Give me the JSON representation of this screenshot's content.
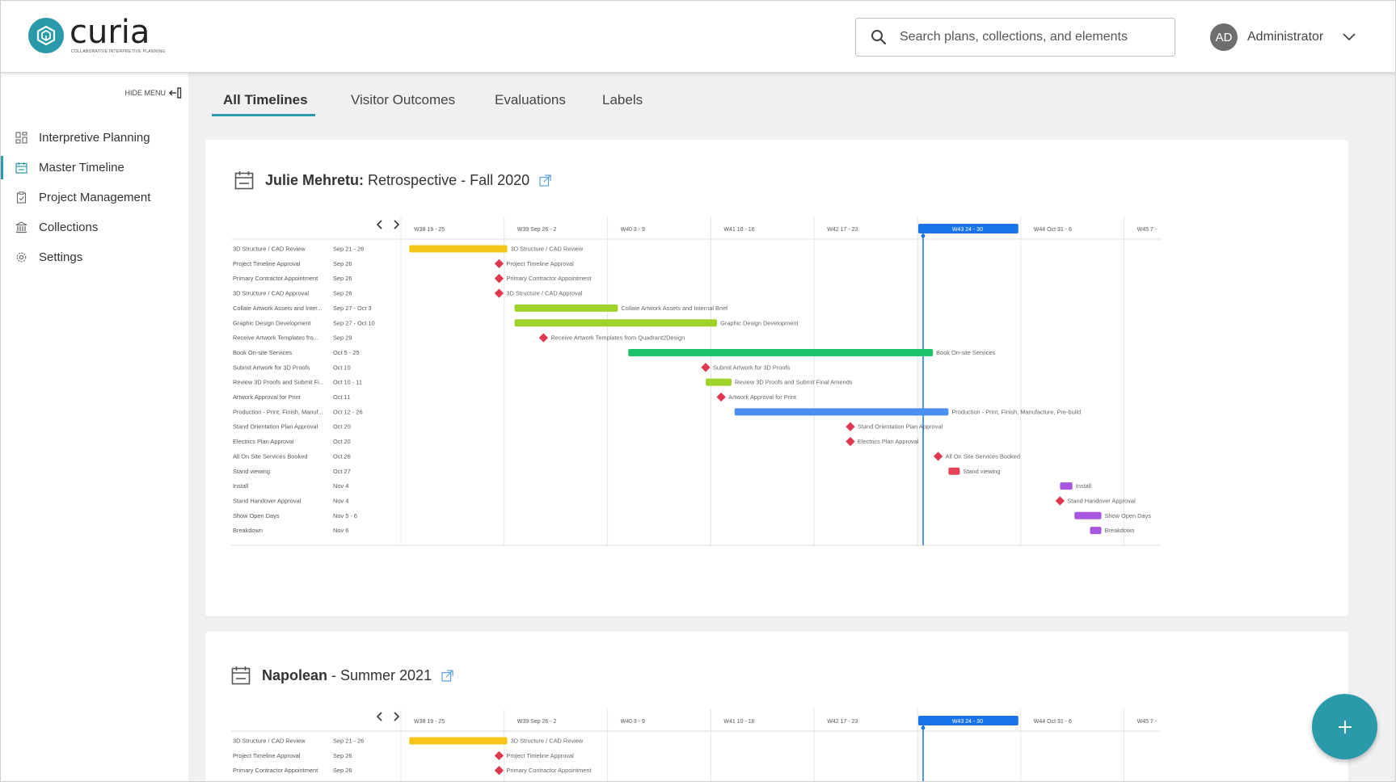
{
  "app": {
    "logo_word": "curia",
    "logo_subtitle": "COLLABORATIVE INTERPRETIVE PLANNING",
    "search_placeholder": "Search plans, collections, and elements",
    "user_initials": "AD",
    "user_name": "Administrator",
    "accent": "#2a9aaa"
  },
  "sidebar": {
    "hide_label": "HIDE MENU",
    "items": [
      {
        "label": "Interpretive Planning",
        "icon": "grid-icon"
      },
      {
        "label": "Master Timeline",
        "icon": "calendar-icon",
        "active": true
      },
      {
        "label": "Project Management",
        "icon": "clipboard-check-icon"
      },
      {
        "label": "Collections",
        "icon": "museum-icon"
      },
      {
        "label": "Settings",
        "icon": "gear-icon"
      }
    ]
  },
  "tabs": [
    {
      "label": "All Timelines",
      "active": true
    },
    {
      "label": "Visitor Outcomes"
    },
    {
      "label": "Evaluations"
    },
    {
      "label": "Labels"
    }
  ],
  "timelines": [
    {
      "title_bold": "Julie Mehretu:",
      "title_rest": " Retrospective - Fall 2020",
      "weeks": [
        "W38  19 - 25",
        "W39  Sep 26 - 2",
        "W40  3 - 9",
        "W41  10 - 16",
        "W42  17 - 23",
        "W43  24 - 30",
        "W44  Oct 31 - 6",
        "W45  7 -"
      ],
      "current_week_index": 5,
      "tasks": [
        {
          "name": "3D Structure / CAD Review",
          "date": "Sep 21 - 26",
          "type": "bar",
          "start": 0.08,
          "end": 1.03,
          "color": "#f5c518",
          "label": "3D Structure / CAD Review"
        },
        {
          "name": "Project Timeline Approval",
          "date": "Sep 26",
          "type": "milestone",
          "start": 0.95,
          "label": "Project Timeline Approval"
        },
        {
          "name": "Primary Contractor Appointment",
          "date": "Sep 26",
          "type": "milestone",
          "start": 0.95,
          "label": "Primary Contractor Appointment"
        },
        {
          "name": "3D Structure / CAD Approval",
          "date": "Sep 26",
          "type": "milestone",
          "start": 0.95,
          "label": "3D Structure / CAD Approval"
        },
        {
          "name": "Collate Artwork Assets and Inter...",
          "date": "Sep 27 - Oct 3",
          "type": "bar",
          "start": 1.1,
          "end": 2.1,
          "color": "#9fd22b",
          "label": "Collate Artwork Assets and Internal Brief"
        },
        {
          "name": "Graphic Design Development",
          "date": "Sep 27 - Oct 10",
          "type": "bar",
          "start": 1.1,
          "end": 3.06,
          "color": "#9fd22b",
          "label": "Graphic Design Development"
        },
        {
          "name": "Receive Artwork Templates fro...",
          "date": "Sep 29",
          "type": "milestone",
          "start": 1.38,
          "label": "Receive Artwork Templates from Quadrant2Design"
        },
        {
          "name": "Book On-site Services",
          "date": "Oct 5 - 25",
          "type": "bar",
          "start": 2.2,
          "end": 5.15,
          "color": "#1ec26a",
          "label": "Book On-site Services"
        },
        {
          "name": "Submit Artwork for 3D Proofs",
          "date": "Oct 10",
          "type": "milestone",
          "start": 2.95,
          "label": "Submit Artwork for 3D Proofs"
        },
        {
          "name": "Review 3D Proofs and Submit Fi...",
          "date": "Oct 10 - 11",
          "type": "bar",
          "start": 2.95,
          "end": 3.2,
          "color": "#9fd22b",
          "label": "Review 3D Proofs and Submit Final Amends"
        },
        {
          "name": "Artwork Approval for Print",
          "date": "Oct 11",
          "type": "milestone",
          "start": 3.1,
          "label": "Artwork Approval for Print"
        },
        {
          "name": "Production - Print, Finish, Manuf...",
          "date": "Oct 12 - 26",
          "type": "bar",
          "start": 3.23,
          "end": 5.3,
          "color": "#4a8ff0",
          "label": "Production - Print, Finish, Manufacture, Pre-build"
        },
        {
          "name": "Stand Orientation Plan Approval",
          "date": "Oct 20",
          "type": "milestone",
          "start": 4.35,
          "label": "Stand Orientation Plan Approval"
        },
        {
          "name": "Electrics Plan Approval",
          "date": "Oct 20",
          "type": "milestone",
          "start": 4.35,
          "label": "Electrics Plan Approval"
        },
        {
          "name": "All On Site Services Booked",
          "date": "Oct 26",
          "type": "milestone",
          "start": 5.2,
          "label": "All On Site Services Booked"
        },
        {
          "name": "Stand viewing",
          "date": "Oct 27",
          "type": "bar",
          "start": 5.3,
          "end": 5.41,
          "color": "#e8425a",
          "label": "Stand viewing"
        },
        {
          "name": "Install",
          "date": "Nov 4",
          "type": "bar",
          "start": 6.38,
          "end": 6.5,
          "color": "#a855e0",
          "label": "Install"
        },
        {
          "name": "Stand Handover Approval",
          "date": "Nov 4",
          "type": "milestone",
          "start": 6.38,
          "label": "Stand Handover Approval"
        },
        {
          "name": "Show Open Days",
          "date": "Nov 5 - 6",
          "type": "bar",
          "start": 6.52,
          "end": 6.78,
          "color": "#a855e0",
          "label": "Show Open Days"
        },
        {
          "name": "Breakdown",
          "date": "Nov 6",
          "type": "bar",
          "start": 6.67,
          "end": 6.78,
          "color": "#a855e0",
          "label": "Breakdown"
        }
      ]
    },
    {
      "title_bold": "Napolean",
      "title_rest": " - Summer 2021",
      "weeks": [
        "W38  19 - 25",
        "W39  Sep 26 - 2",
        "W40  3 - 9",
        "W41  10 - 16",
        "W42  17 - 23",
        "W43  24 - 30",
        "W44  Oct 31 - 6",
        "W45  7 -"
      ],
      "current_week_index": 5,
      "tasks": [
        {
          "name": "3D Structure / CAD Review",
          "date": "Sep 21 - 26",
          "type": "bar",
          "start": 0.08,
          "end": 1.03,
          "color": "#f5c518",
          "label": "3D Structure / CAD Review"
        },
        {
          "name": "Project Timeline Approval",
          "date": "Sep 26",
          "type": "milestone",
          "start": 0.95,
          "label": "Project Timeline Approval"
        },
        {
          "name": "Primary Contractor Appointment",
          "date": "Sep 26",
          "type": "milestone",
          "start": 0.95,
          "label": "Primary Contractor Appointment"
        }
      ]
    }
  ]
}
